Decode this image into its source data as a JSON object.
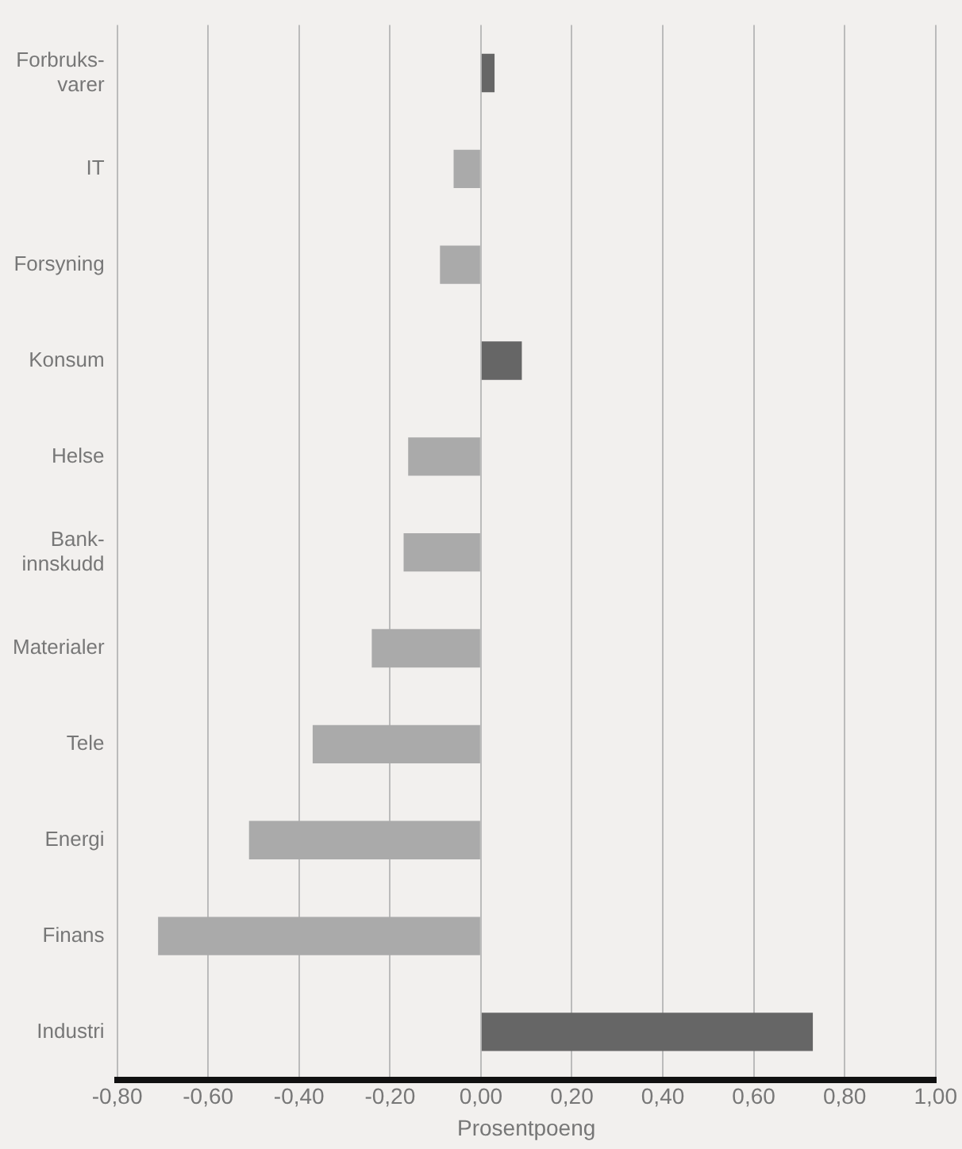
{
  "chart_data": {
    "type": "bar",
    "orientation": "horizontal",
    "xlabel": "Prosentpoeng",
    "categories": [
      "Forbruks-\nvarer",
      "IT",
      "Forsyning",
      "Konsum",
      "Helse",
      "Bank-\ninnskudd",
      "Materialer",
      "Tele",
      "Energi",
      "Finans",
      "Industri"
    ],
    "values": [
      0.03,
      -0.06,
      -0.09,
      0.09,
      -0.16,
      -0.17,
      -0.24,
      -0.37,
      -0.51,
      -0.71,
      0.73
    ],
    "colors": [
      "#666666",
      "#aaaaaa",
      "#aaaaaa",
      "#666666",
      "#aaaaaa",
      "#aaaaaa",
      "#aaaaaa",
      "#aaaaaa",
      "#aaaaaa",
      "#aaaaaa",
      "#666666"
    ],
    "xlim": [
      -0.8,
      1.0
    ],
    "xticks": [
      {
        "value": -0.8,
        "label": "-0,80"
      },
      {
        "value": -0.6,
        "label": "-0,60"
      },
      {
        "value": -0.4,
        "label": "-0,40"
      },
      {
        "value": -0.2,
        "label": "-0,20"
      },
      {
        "value": 0,
        "label": "0,00"
      },
      {
        "value": 0.2,
        "label": "0,20"
      },
      {
        "value": 0.4,
        "label": "0,40"
      },
      {
        "value": 0.6,
        "label": "0,60"
      },
      {
        "value": 0.8,
        "label": "0,80"
      },
      {
        "value": 1.0,
        "label": "1,00"
      }
    ],
    "grid": "x",
    "legend": false
  }
}
